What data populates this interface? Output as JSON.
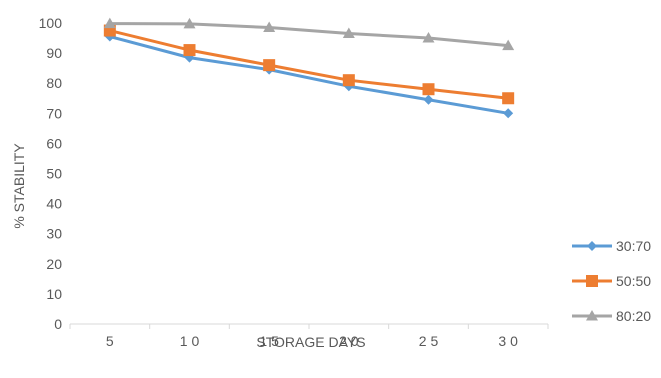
{
  "chart_data": {
    "type": "line",
    "categories": [
      "5",
      "1 0",
      "1 5",
      "2 0",
      "2 5",
      "3 0"
    ],
    "xlabel": "STORAGE DAYS",
    "ylabel": "% STABILITY",
    "ylim": [
      0,
      100
    ],
    "yticks": [
      0,
      10,
      20,
      30,
      40,
      50,
      60,
      70,
      80,
      90,
      100
    ],
    "grid": false,
    "legend_position": "right",
    "series": [
      {
        "name": "30:70",
        "color": "#5B9BD5",
        "marker": "diamond",
        "values": [
          95.5,
          88.5,
          84.5,
          79,
          74.5,
          70
        ]
      },
      {
        "name": "50:50",
        "color": "#ED7D31",
        "marker": "square",
        "values": [
          97.5,
          91,
          86,
          81,
          78,
          75
        ]
      },
      {
        "name": "80:20",
        "color": "#A5A5A5",
        "marker": "triangle",
        "values": [
          99.8,
          99.7,
          98.5,
          96.5,
          95,
          92.5
        ]
      }
    ]
  }
}
